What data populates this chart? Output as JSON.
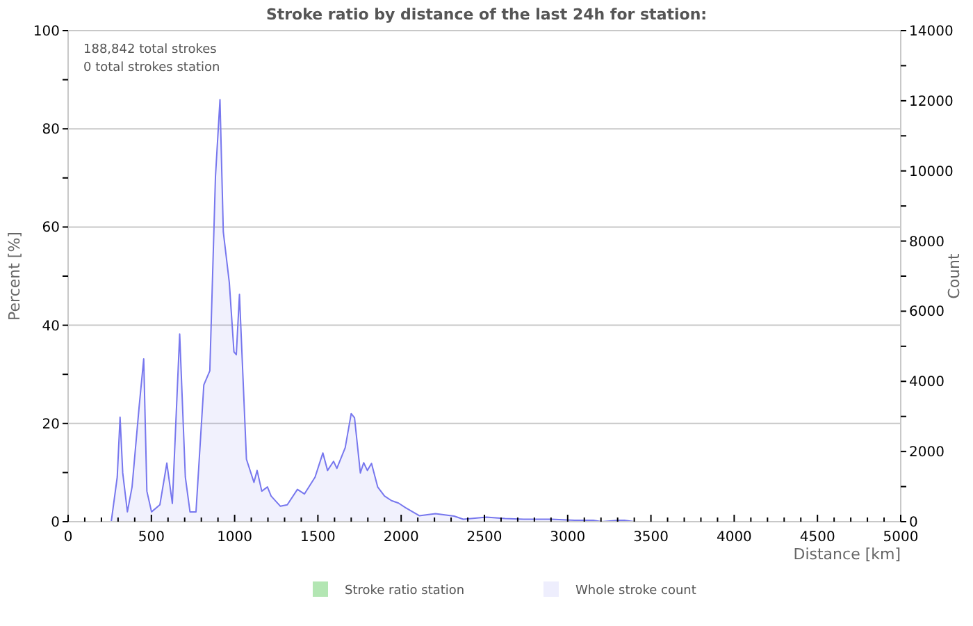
{
  "chart_data": {
    "type": "area",
    "title": "Stroke ratio by distance of the last 24h for station:",
    "xlabel": "Distance   [km]",
    "ylabel": "Percent   [%]",
    "y2label": "Count",
    "annotations": [
      "188,842 total strokes",
      "0 total strokes station"
    ],
    "xlim": [
      0,
      5000
    ],
    "xticks": [
      0,
      {
        "value": 100,
        "label": null
      },
      {
        "value": 200,
        "label": null
      },
      {
        "value": 300,
        "label": null
      },
      {
        "value": 400,
        "label": null
      },
      500,
      {
        "value": 600,
        "label": null
      },
      {
        "value": 700,
        "label": null
      },
      {
        "value": 800,
        "label": null
      },
      {
        "value": 900,
        "label": null
      },
      1000,
      {
        "value": 1100,
        "label": null
      },
      {
        "value": 1200,
        "label": null
      },
      {
        "value": 1300,
        "label": null
      },
      {
        "value": 1400,
        "label": null
      },
      1500,
      {
        "value": 1600,
        "label": null
      },
      {
        "value": 1700,
        "label": null
      },
      {
        "value": 1800,
        "label": null
      },
      {
        "value": 1900,
        "label": null
      },
      2000,
      {
        "value": 2100,
        "label": null
      },
      {
        "value": 2200,
        "label": null
      },
      {
        "value": 2300,
        "label": null
      },
      {
        "value": 2400,
        "label": null
      },
      2500,
      {
        "value": 2600,
        "label": null
      },
      {
        "value": 2700,
        "label": null
      },
      {
        "value": 2800,
        "label": null
      },
      {
        "value": 2900,
        "label": null
      },
      3000,
      {
        "value": 3100,
        "label": null
      },
      {
        "value": 3200,
        "label": null
      },
      {
        "value": 3300,
        "label": null
      },
      {
        "value": 3400,
        "label": null
      },
      3500,
      {
        "value": 3600,
        "label": null
      },
      {
        "value": 3700,
        "label": null
      },
      {
        "value": 3800,
        "label": null
      },
      {
        "value": 3900,
        "label": null
      },
      4000,
      {
        "value": 4100,
        "label": null
      },
      {
        "value": 4200,
        "label": null
      },
      {
        "value": 4300,
        "label": null
      },
      {
        "value": 4400,
        "label": null
      },
      4500,
      {
        "value": 4600,
        "label": null
      },
      {
        "value": 4700,
        "label": null
      },
      {
        "value": 4800,
        "label": null
      },
      {
        "value": 4900,
        "label": null
      },
      5000
    ],
    "ylim": [
      0,
      100
    ],
    "yticks": [
      0,
      {
        "value": 10,
        "label": null
      },
      20,
      {
        "value": 30,
        "label": null
      },
      40,
      {
        "value": 50,
        "label": null
      },
      60,
      {
        "value": 70,
        "label": null
      },
      80,
      {
        "value": 90,
        "label": null
      },
      100
    ],
    "y2lim": [
      0,
      14000
    ],
    "y2ticks": [
      0,
      {
        "value": 1000,
        "label": null
      },
      2000,
      {
        "value": 3000,
        "label": null
      },
      4000,
      {
        "value": 5000,
        "label": null
      },
      6000,
      {
        "value": 7000,
        "label": null
      },
      8000,
      {
        "value": 9000,
        "label": null
      },
      10000,
      {
        "value": 11000,
        "label": null
      },
      12000,
      {
        "value": 13000,
        "label": null
      },
      14000
    ],
    "grid": "y",
    "legend": "bottom",
    "series": [
      {
        "name": "Stroke ratio station",
        "color": "#b3e6b3"
      },
      {
        "name": "Whole stroke count",
        "color": "#7777ee",
        "axis": "y2",
        "x": [
          259,
          295,
          312,
          328,
          356,
          384,
          426,
          454,
          473,
          501,
          551,
          593,
          626,
          670,
          704,
          732,
          768,
          815,
          851,
          885,
          912,
          932,
          968,
          996,
          1010,
          1029,
          1052,
          1071,
          1116,
          1135,
          1163,
          1197,
          1219,
          1275,
          1316,
          1377,
          1419,
          1483,
          1530,
          1558,
          1594,
          1614,
          1664,
          1700,
          1720,
          1755,
          1775,
          1797,
          1822,
          1859,
          1900,
          1942,
          1984,
          2026,
          2109,
          2206,
          2318,
          2373,
          2512,
          2624,
          2735,
          2902,
          3041,
          3153,
          3205,
          3306,
          3340,
          3400
        ],
        "values": [
          0,
          1270,
          2980,
          1390,
          280,
          990,
          3250,
          4640,
          870,
          280,
          480,
          1670,
          520,
          5350,
          1270,
          280,
          280,
          3900,
          4300,
          9850,
          12030,
          8260,
          6820,
          4840,
          4760,
          6480,
          3900,
          1780,
          1120,
          1460,
          870,
          990,
          730,
          440,
          480,
          920,
          790,
          1270,
          1960,
          1460,
          1720,
          1520,
          2110,
          3080,
          2960,
          1390,
          1680,
          1460,
          1660,
          990,
          730,
          600,
          530,
          400,
          170,
          230,
          160,
          70,
          130,
          90,
          70,
          70,
          40,
          40,
          0,
          40,
          40,
          0
        ]
      }
    ]
  }
}
